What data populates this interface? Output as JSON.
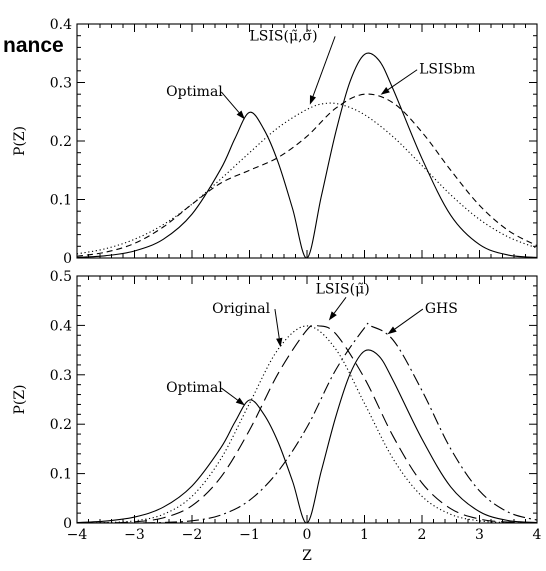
{
  "overlay_text": "nance",
  "chart_data": [
    {
      "type": "line",
      "panel": "top",
      "xlim": [
        -4,
        4
      ],
      "ylim": [
        0,
        0.4
      ],
      "ylabel": "P(Z)",
      "xlabel": "",
      "x_ticks": [
        -4,
        -3,
        -2,
        -1,
        0,
        1,
        2,
        3,
        4
      ],
      "y_ticks": [
        "0",
        "0.1",
        "0.2",
        "0.3",
        "0.4"
      ],
      "y_tick_values": [
        0,
        0.1,
        0.2,
        0.3,
        0.4
      ],
      "x_ticklabels_shown": false,
      "series": [
        {
          "name": "Optimal",
          "style": "solid",
          "x": [
            -4,
            -3.5,
            -3,
            -2.5,
            -2,
            -1.5,
            -1.25,
            -1,
            -0.75,
            -0.5,
            -0.25,
            0,
            0.25,
            0.5,
            0.75,
            1,
            1.25,
            1.5,
            2,
            2.5,
            3,
            3.5,
            4
          ],
          "y": [
            0.001,
            0.004,
            0.012,
            0.032,
            0.075,
            0.152,
            0.205,
            0.249,
            0.22,
            0.163,
            0.084,
            0.0,
            0.106,
            0.215,
            0.302,
            0.348,
            0.338,
            0.288,
            0.17,
            0.073,
            0.023,
            0.005,
            0.001
          ]
        },
        {
          "name": "LSIS(μ̃,σ̃)",
          "style": "dotted",
          "x": [
            -4,
            -3.5,
            -3,
            -2.5,
            -2,
            -1.5,
            -1,
            -0.5,
            0,
            0.3,
            0.6,
            1,
            1.5,
            2,
            2.5,
            3,
            3.5,
            4
          ],
          "y": [
            0.007,
            0.016,
            0.032,
            0.057,
            0.092,
            0.135,
            0.18,
            0.223,
            0.254,
            0.264,
            0.262,
            0.245,
            0.207,
            0.158,
            0.108,
            0.066,
            0.036,
            0.017
          ]
        },
        {
          "name": "LSISbm",
          "style": "dashed",
          "x": [
            -4,
            -3.5,
            -3,
            -2.5,
            -2,
            -1.5,
            -1,
            -0.5,
            0,
            0.5,
            1,
            1.5,
            2,
            2.5,
            3,
            3.5,
            4
          ],
          "y": [
            0.003,
            0.01,
            0.025,
            0.053,
            0.092,
            0.128,
            0.15,
            0.172,
            0.208,
            0.256,
            0.28,
            0.265,
            0.215,
            0.15,
            0.09,
            0.047,
            0.021
          ]
        }
      ],
      "annotations": [
        {
          "text": "Optimal",
          "x": -2.45,
          "y": 0.277,
          "arrow_to": [
            -1.08,
            0.237
          ]
        },
        {
          "text": "LSIS(μ̃,σ̃)",
          "x": -1.0,
          "y": 0.372,
          "arrow_to": [
            0.05,
            0.262
          ]
        },
        {
          "text": "LSISbm",
          "x": 1.95,
          "y": 0.315,
          "arrow_to": [
            1.28,
            0.279
          ]
        }
      ]
    },
    {
      "type": "line",
      "panel": "bottom",
      "xlim": [
        -4,
        4
      ],
      "ylim": [
        0,
        0.5
      ],
      "ylabel": "P(Z)",
      "xlabel": "Z",
      "x_ticks": [
        -4,
        -3,
        -2,
        -1,
        0,
        1,
        2,
        3,
        4
      ],
      "x_ticklabels": [
        "−4",
        "−3",
        "−2",
        "−1",
        "0",
        "1",
        "2",
        "3",
        "4"
      ],
      "y_ticks": [
        "0",
        "0.1",
        "0.2",
        "0.3",
        "0.4",
        "0.5"
      ],
      "y_tick_values": [
        0,
        0.1,
        0.2,
        0.3,
        0.4,
        0.5
      ],
      "series": [
        {
          "name": "Optimal",
          "style": "solid",
          "x": [
            -4,
            -3.5,
            -3,
            -2.5,
            -2,
            -1.5,
            -1.25,
            -1,
            -0.75,
            -0.5,
            -0.25,
            0,
            0.25,
            0.5,
            0.75,
            1,
            1.25,
            1.5,
            2,
            2.5,
            3,
            3.5,
            4
          ],
          "y": [
            0.001,
            0.004,
            0.012,
            0.032,
            0.075,
            0.152,
            0.205,
            0.249,
            0.22,
            0.163,
            0.084,
            0.0,
            0.106,
            0.215,
            0.302,
            0.348,
            0.338,
            0.288,
            0.17,
            0.073,
            0.023,
            0.005,
            0.001
          ]
        },
        {
          "name": "Original",
          "style": "dotted",
          "x": [
            -4,
            -3.5,
            -3,
            -2.5,
            -2,
            -1.5,
            -1,
            -0.5,
            0,
            0.5,
            1,
            1.5,
            2,
            2.5,
            3,
            3.5,
            4
          ],
          "y": [
            0.0001,
            0.0009,
            0.0044,
            0.0175,
            0.054,
            0.1295,
            0.242,
            0.352,
            0.399,
            0.352,
            0.242,
            0.1295,
            0.054,
            0.0175,
            0.0044,
            0.0009,
            0.0001
          ]
        },
        {
          "name": "LSIS(μ̃)",
          "style": "long-dashed",
          "x": [
            -4,
            -3.5,
            -3,
            -2.5,
            -2,
            -1.5,
            -1,
            -0.5,
            0,
            0.2,
            0.5,
            1,
            1.5,
            2,
            2.5,
            3,
            3.5,
            4
          ],
          "y": [
            0.0,
            0.0004,
            0.0024,
            0.0104,
            0.035,
            0.0925,
            0.188,
            0.303,
            0.391,
            0.399,
            0.383,
            0.293,
            0.175,
            0.081,
            0.029,
            0.008,
            0.0018,
            0.0003
          ]
        },
        {
          "name": "GHS",
          "style": "dash-dot",
          "x": [
            -4,
            -3,
            -2.5,
            -2,
            -1.5,
            -1,
            -0.5,
            0,
            0.5,
            1,
            1.1,
            1.5,
            2,
            2.5,
            3,
            3.5,
            4
          ],
          "y": [
            0.0,
            0.0001,
            0.0011,
            0.0045,
            0.016,
            0.046,
            0.105,
            0.194,
            0.31,
            0.395,
            0.399,
            0.37,
            0.268,
            0.15,
            0.065,
            0.022,
            0.0058
          ]
        }
      ],
      "annotations": [
        {
          "text": "Original",
          "x": -1.65,
          "y": 0.425,
          "arrow_to": [
            -0.46,
            0.356
          ]
        },
        {
          "text": "LSIS(μ̃)",
          "x": 0.15,
          "y": 0.465,
          "arrow_to": [
            0.38,
            0.41
          ]
        },
        {
          "text": "GHS",
          "x": 2.05,
          "y": 0.425,
          "arrow_to": [
            1.4,
            0.382
          ]
        },
        {
          "text": "Optimal",
          "x": -2.45,
          "y": 0.265,
          "arrow_to": [
            -1.08,
            0.238
          ]
        }
      ]
    }
  ]
}
